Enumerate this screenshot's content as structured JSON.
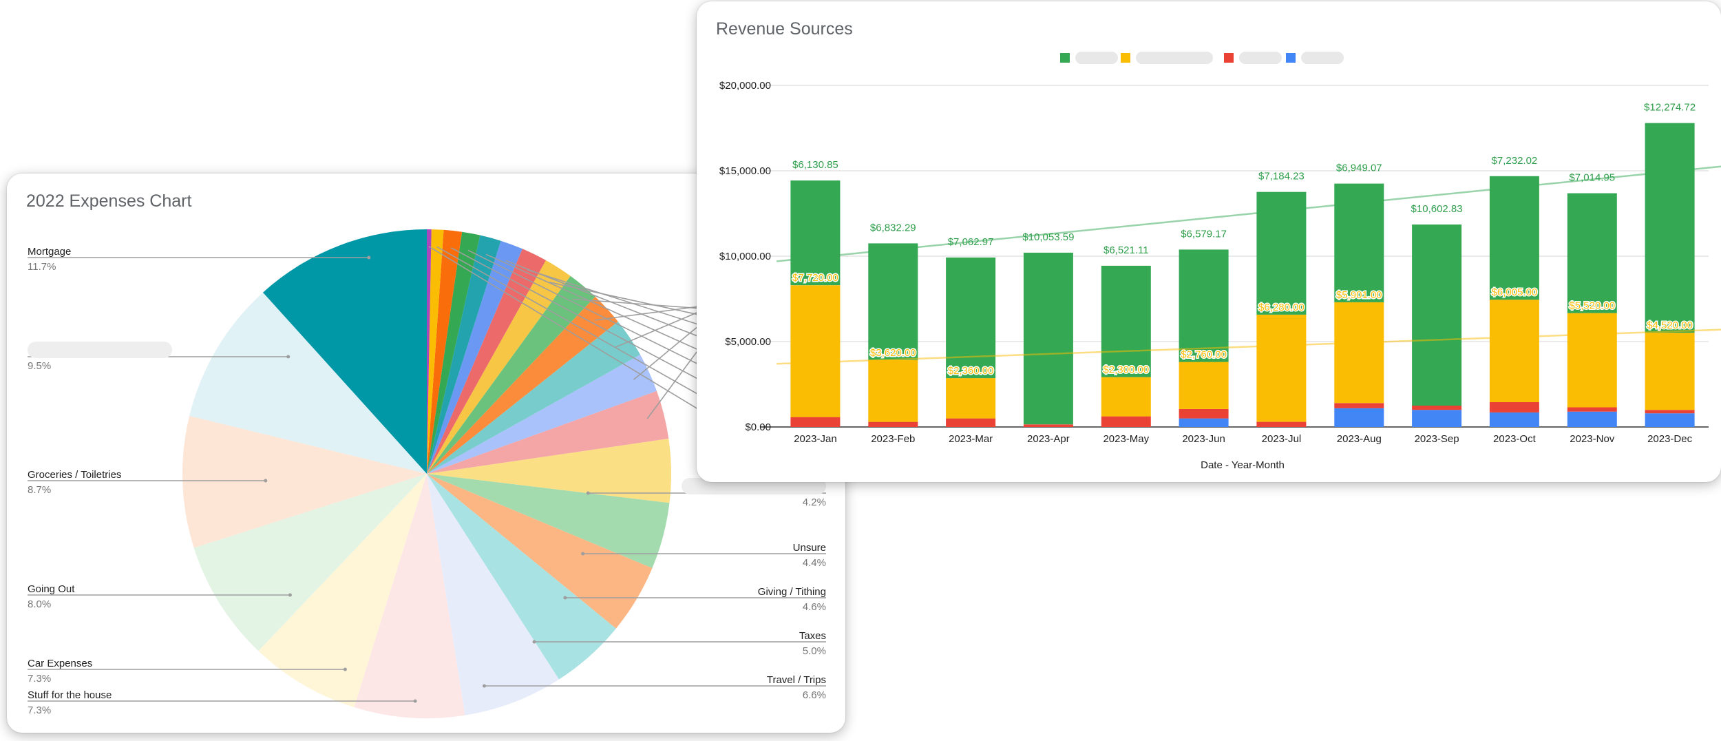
{
  "colors": {
    "series": [
      "#34a853",
      "#fbbc04",
      "#ea4335",
      "#4285f4"
    ],
    "pie": [
      "#0097a7",
      "#e0f2f5",
      "#fde6d6",
      "#e3f4e5",
      "#fff6d8",
      "#fde6e6",
      "#e7ecfb",
      "#a8e2e2",
      "#fcb683",
      "#a3dbae",
      "#fbdf85",
      "#f4a5a5",
      "#a9c2fb",
      "#79cccc",
      "#fa8c3c",
      "#6bc27c",
      "#f6c644",
      "#ec6a6a",
      "#6b98f2",
      "#23a3ad",
      "#34a853",
      "#fa6d0b",
      "#fbbc04",
      "#ab47bc"
    ],
    "label": "#222222",
    "sublabel": "#757575",
    "leader": "#9e9e9e"
  },
  "chart_data": [
    {
      "type": "pie",
      "title": "2022 Expenses Chart",
      "slices": [
        {
          "label": "Mortgage",
          "value": 11.7,
          "pct": "11.7%"
        },
        {
          "label": "",
          "value": 9.5,
          "pct": "9.5%"
        },
        {
          "label": "Groceries / Toiletries",
          "value": 8.7,
          "pct": "8.7%"
        },
        {
          "label": "Going Out",
          "value": 8.0,
          "pct": "8.0%"
        },
        {
          "label": "Car Expenses",
          "value": 7.3,
          "pct": "7.3%"
        },
        {
          "label": "Stuff for the house",
          "value": 7.3,
          "pct": "7.3%"
        },
        {
          "label": "Travel / Trips",
          "value": 6.6,
          "pct": "6.6%"
        },
        {
          "label": "Taxes",
          "value": 5.0,
          "pct": "5.0%"
        },
        {
          "label": "Giving / Tithing",
          "value": 4.6,
          "pct": "4.6%"
        },
        {
          "label": "Unsure",
          "value": 4.4,
          "pct": "4.4%"
        },
        {
          "label": "",
          "value": 4.2,
          "pct": "4.2%"
        },
        {
          "label": "",
          "value": 3.2,
          "pct": ""
        },
        {
          "label": "",
          "value": 2.6,
          "pct": ""
        },
        {
          "label": "",
          "value": 2.6,
          "pct": ""
        },
        {
          "label": "",
          "value": 2.2,
          "pct": ""
        },
        {
          "label": "",
          "value": 2.1,
          "pct": ""
        },
        {
          "label": "",
          "value": 1.9,
          "pct": ""
        },
        {
          "label": "",
          "value": 1.7,
          "pct": ""
        },
        {
          "label": "",
          "value": 1.5,
          "pct": ""
        },
        {
          "label": "",
          "value": 1.4,
          "pct": ""
        },
        {
          "label": "",
          "value": 1.2,
          "pct": ""
        },
        {
          "label": "",
          "value": 1.2,
          "pct": ""
        },
        {
          "label": "",
          "value": 0.8,
          "pct": ""
        },
        {
          "label": "",
          "value": 0.3,
          "pct": ""
        }
      ]
    },
    {
      "type": "bar",
      "stacked": true,
      "title": "Revenue Sources",
      "legend_position": "top",
      "xlabel": "Date - Year-Month",
      "ylabel": "",
      "ylim": [
        0,
        20000
      ],
      "yticks": [
        "$0.00",
        "$5,000.00",
        "$10,000.00",
        "$15,000.00",
        "$20,000.00"
      ],
      "categories": [
        "2023-Jan",
        "2023-Feb",
        "2023-Mar",
        "2023-Apr",
        "2023-May",
        "2023-Jun",
        "2023-Jul",
        "2023-Aug",
        "2023-Sep",
        "2023-Oct",
        "2023-Nov",
        "2023-Dec"
      ],
      "series": [
        {
          "name": "",
          "values": [
            0,
            0,
            0,
            0,
            0,
            500,
            0,
            1100,
            1000,
            850,
            900,
            800
          ]
        },
        {
          "name": "",
          "values": [
            580,
            300,
            500,
            150,
            620,
            550,
            300,
            300,
            250,
            600,
            250,
            200
          ]
        },
        {
          "name": "",
          "values": [
            7720,
            3620,
            2360,
            0,
            2300,
            2760,
            6280,
            5901,
            0,
            6005,
            5520,
            4520
          ]
        },
        {
          "name": "",
          "values": [
            6131,
            6832,
            7063,
            10054,
            6521,
            6579,
            7184,
            6949,
            10603,
            7232,
            7015,
            12275
          ]
        }
      ],
      "stack_order": [
        0,
        1,
        2,
        3
      ],
      "green_labels": [
        "$6,130.85",
        "$6,832.29",
        "$7,062.97",
        "$10,053.59",
        "$6,521.11",
        "$6,579.17",
        "$7,184.23",
        "$6,949.07",
        "$10,602.83",
        "$7,232.02",
        "$7,014.95",
        "$12,274.72"
      ],
      "yellow_labels": [
        "$7,720.00",
        "$3,620.00",
        "$2,360.00",
        "",
        "$2,300.00",
        "$2,760.00",
        "$6,280.00",
        "$5,901.00",
        "",
        "$6,005.00",
        "$5,520.00",
        "$4,520.00"
      ],
      "trendlines": [
        {
          "series": "green",
          "start": 9700,
          "end": 15250
        },
        {
          "series": "yellow",
          "start": 3700,
          "end": 5700
        }
      ]
    }
  ]
}
